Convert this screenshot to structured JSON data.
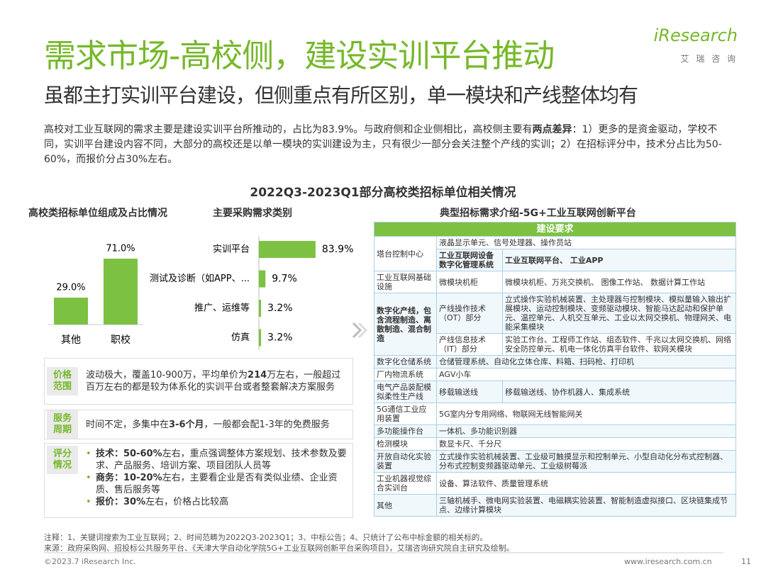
{
  "header": {
    "title": "需求市场-高校侧，建设实训平台推动",
    "subtitle": "虽都主打实训平台建设，但侧重点有所区别，单一模块和产线整体均有",
    "logo": "iResearch",
    "logo_sub": "艾 瑞 咨 询"
  },
  "paragraph": [
    {
      "text": "高校对工业互联网的需求主要是建设实训平台所推动的，占比为83.9%。与政府侧和企业侧相比，高校侧主要有"
    },
    {
      "text": "两点差异",
      "bold": true
    },
    {
      "text": "：1）更多的是资金驱动，学校不同，实训平台建设内容不同，大部分的高校还是以单一模块的实训建设为主，只有很少一部分会关注整个产线的实训；2）在招标评分中，技术分占比为50-60%，而报价分占30%左右。"
    }
  ],
  "section_title": "2022Q3-2023Q1部分高校类招标单位相关情况",
  "chart_data": [
    {
      "type": "bar",
      "title": "高校类招标单位组成及占比情况",
      "categories": [
        "其他",
        "职校"
      ],
      "values": [
        29.0,
        71.0
      ],
      "value_labels": [
        "29.0%",
        "71.0%"
      ],
      "color": "#7dc142"
    },
    {
      "type": "barh",
      "title": "主要采购需求类别",
      "categories": [
        "实训平台",
        "测试及诊断（如APP、...",
        "推广、运维等",
        "仿真"
      ],
      "values": [
        83.9,
        9.7,
        3.2,
        3.2
      ],
      "value_labels": [
        "83.9%",
        "9.7%",
        "3.2%",
        "3.2%"
      ],
      "color": "#7dc142"
    }
  ],
  "info_boxes": [
    {
      "label": "价格范围",
      "lines": [
        [
          {
            "text": "波动极大，覆盖10-900万，平均单价为"
          },
          {
            "text": "214",
            "bold": true
          },
          {
            "text": "万左右，一般超过百万左右的都是较为体系化的实训平台或者整套解决方案服务"
          }
        ]
      ]
    },
    {
      "label": "服务周期",
      "lines": [
        [
          {
            "text": "时间不定，多集中在"
          },
          {
            "text": "3-6个月",
            "bold": true
          },
          {
            "text": "，一般都会配1-3年的免费服务"
          }
        ]
      ]
    },
    {
      "label": "评分情况",
      "lines": [
        [
          {
            "text": "技术：50-60%",
            "bold": true
          },
          {
            "text": "左右，重点强调整体方案规划、技术参数及要求、产品服务、培训方案、项目团队人员等"
          }
        ],
        [
          {
            "text": "商务：10-20%",
            "bold": true
          },
          {
            "text": "左右，主要看企业是否有类似业绩、企业资质、售后服务等"
          }
        ],
        [
          {
            "text": "报价：30%",
            "bold": true
          },
          {
            "text": "左右，价格占比较高"
          }
        ]
      ]
    }
  ],
  "table": {
    "title": "典型招标需求介绍-5G+工业互联网创新平台",
    "header": "建设要求",
    "rows": [
      [
        {
          "text": "塔台控制中心",
          "rowspan": 2
        },
        {
          "text": "液晶显示单元、信号处理器、操作员站",
          "colspan": 2
        }
      ],
      [
        {
          "text": "工业互联网设备数字化管理系统",
          "bold": true
        },
        {
          "text": "工业互联网平台、 工业APP",
          "bold": true
        }
      ],
      [
        {
          "text": "工业互联网基础设施"
        },
        {
          "text": "微模块机柜"
        },
        {
          "text": "微模块机柜、万兆交换机、 图像工作站、 数据计算工作站"
        }
      ],
      [
        {
          "text": "数字化产线，包含流程制造、离散制造、混合制造",
          "rowspan": 2,
          "bold": true
        },
        {
          "text": "产线操作技术（OT）部分"
        },
        {
          "text": "立式操作实验机械装置、主处理器与控制模块、模拟量输入输出扩展模块、运动控制模块、变频驱动模块、智能马达起动和保护单元、温控单元、人机交互单元、工业以太网交换机、物理网关、电能采集模块"
        }
      ],
      [
        {
          "text": "产线信息技术（IT）部分"
        },
        {
          "text": "实验工作台、工程师工作站、组态软件、千兆以太网交换机、网络安全防控单元、机电一体化仿真平台软件、软网关模块"
        }
      ],
      [
        {
          "text": "数字化仓储系统"
        },
        {
          "text": "仓储管理系统、自动化立体仓库、料箱、扫码枪、打印机",
          "colspan": 2
        }
      ],
      [
        {
          "text": "厂内物流系统"
        },
        {
          "text": "AGV小车",
          "colspan": 2
        }
      ],
      [
        {
          "text": "电气产品装配模拟柔性生产线"
        },
        {
          "text": "移载输送线"
        },
        {
          "text": "移载输送线、协作机器人、集成系统"
        }
      ],
      [
        {
          "text": "5G通信工业应用装置"
        },
        {
          "text": "5G室内分专用网络、物联网无线智能网关",
          "colspan": 2
        }
      ],
      [
        {
          "text": "多功能操作台"
        },
        {
          "text": "一体机、多功能识别器",
          "colspan": 2
        }
      ],
      [
        {
          "text": "检测模块"
        },
        {
          "text": "数显卡尺、千分尺",
          "colspan": 2
        }
      ],
      [
        {
          "text": "开放自动化实验装置"
        },
        {
          "text": "立式操作实验机械装置、工业级可触摸显示和控制单元、小型自动化分布式控制器、分布式控制变频器驱动单元、工业级树莓派",
          "colspan": 2
        }
      ],
      [
        {
          "text": "工业机器视觉综合实训台"
        },
        {
          "text": "设备、算法软件、质量管理系统",
          "colspan": 2
        }
      ],
      [
        {
          "text": "其他"
        },
        {
          "text": "三轴机械手、微电网实验装置、电磁耦实验装置、智能制造虚拟接口、区块链集成节点、边缘计算模块",
          "colspan": 2
        }
      ]
    ]
  },
  "footer": {
    "note": "注释：1、关键词搜索为工业互联网；2、时间范畴为2022Q3-2023Q1；3、中标公告；4、只统计了公布中标金额的相关标的。",
    "source": "来源：政府采购网、招投标公共服务平台、《天津大学自动化学院5G+工业互联网创新平台采购项目》，艾瑞咨询研究院自主研究及绘制。",
    "copyright": "©2023.7 iResearch Inc.",
    "website": "www.iresearch.com.cn",
    "page": "11"
  }
}
